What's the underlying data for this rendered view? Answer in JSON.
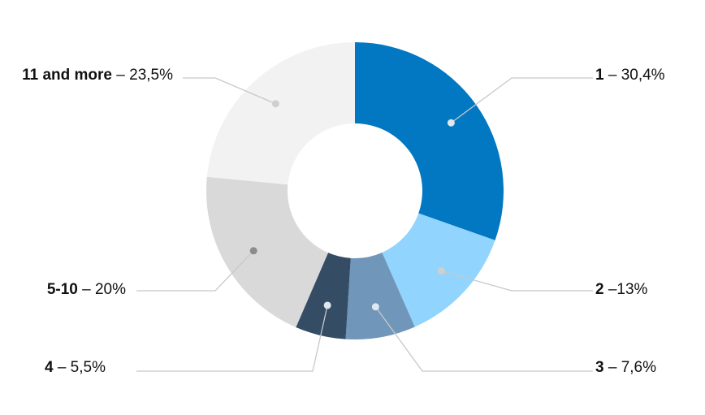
{
  "chart_data": {
    "type": "pie",
    "variant": "donut",
    "title": "",
    "slices": [
      {
        "category": "1",
        "value": 30.4,
        "value_label": "30,4%",
        "separator": " – ",
        "color": "#0277c2"
      },
      {
        "category": "2",
        "value": 13.0,
        "value_label": "13%",
        "separator": " –",
        "color": "#91d4fe"
      },
      {
        "category": "3",
        "value": 7.6,
        "value_label": "7,6%",
        "separator": " – ",
        "color": "#7096b9"
      },
      {
        "category": "4",
        "value": 5.5,
        "value_label": "5,5%",
        "separator": " – ",
        "color": "#344c64"
      },
      {
        "category": "5-10",
        "value": 20.0,
        "value_label": "20%",
        "separator": " – ",
        "color": "#d9d9d9"
      },
      {
        "category": "11 and more",
        "value": 23.5,
        "value_label": "23,5%",
        "separator": " – ",
        "color": "#f2f2f2"
      }
    ],
    "start_angle_deg": 0,
    "direction": "clockwise",
    "legend": "none",
    "leader_line_color": "#c8c8c8"
  }
}
